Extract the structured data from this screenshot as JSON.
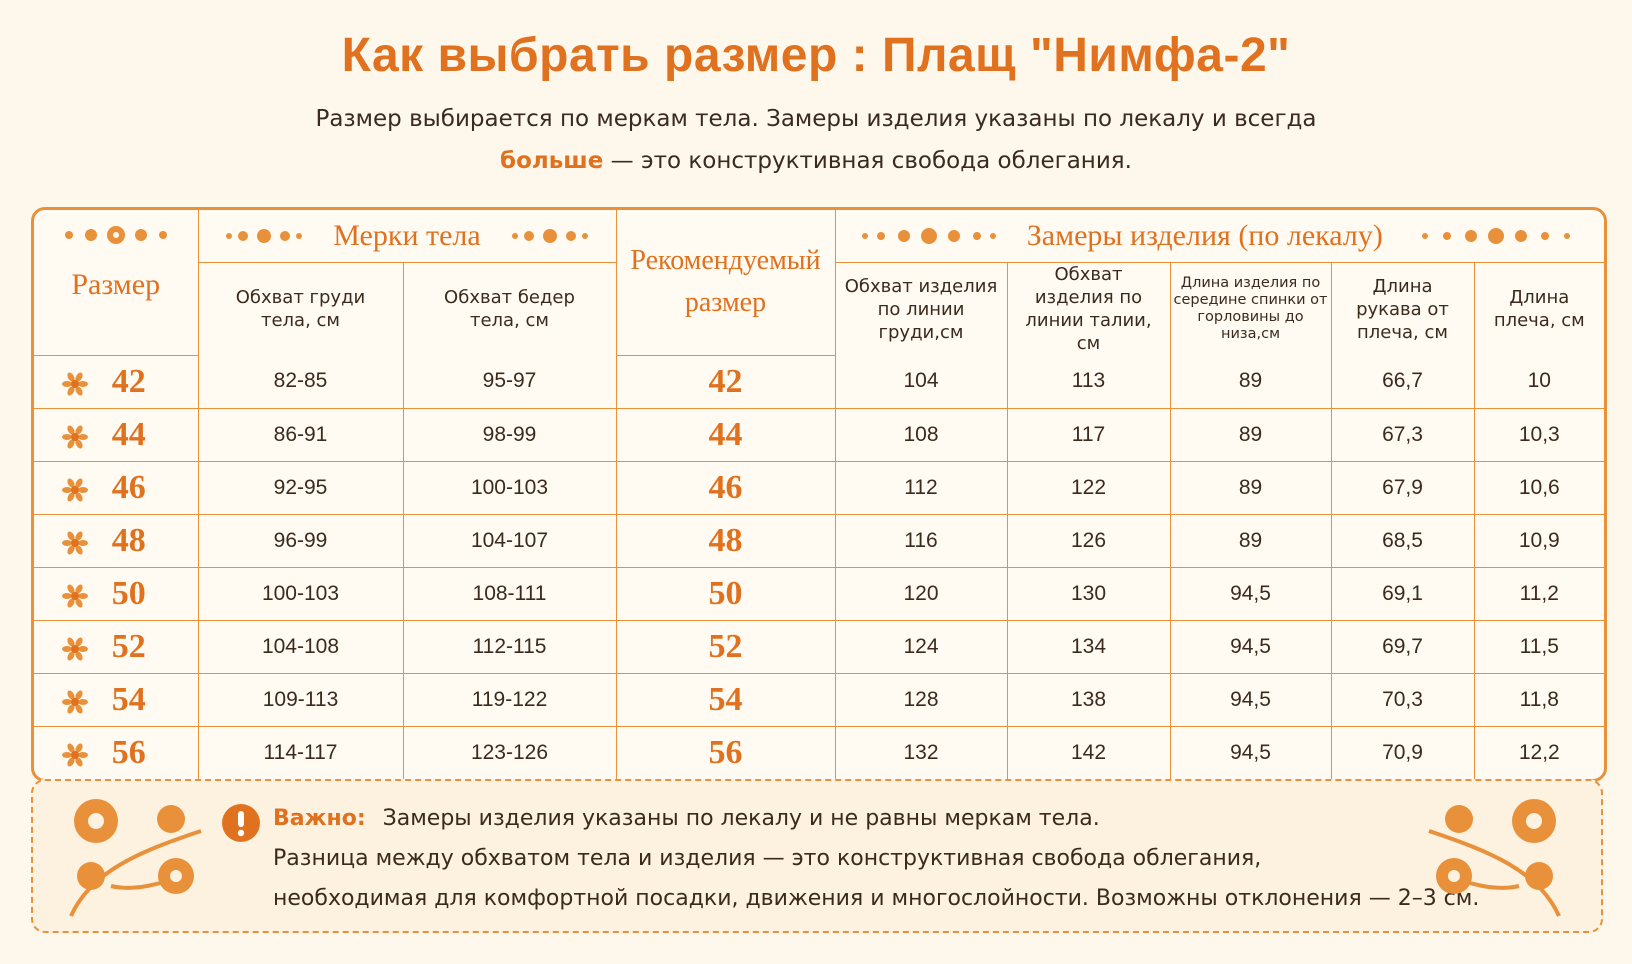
{
  "header": {
    "title": "Как выбрать размер :  Плащ \"Нимфа-2\"",
    "subtitle_line1": "Размер выбирается по меркам тела. Замеры изделия указаны по лекалу и всегда",
    "subtitle_bold": "больше",
    "subtitle_rest": "— это конструктивная свобода облегания."
  },
  "table": {
    "size_header": "Размер",
    "body_group": "Мерки тела",
    "recommended_header": "Рекомендуемый размер",
    "garment_group": "Замеры изделия (по лекалу)",
    "columns": [
      "Обхват груди тела, см",
      "Обхват бедер тела, см",
      "Обхват изделия по линии груди,см",
      "Обхват изделия по линии талии, см",
      "Длина изделия по середине спинки от горловины до низа,см",
      "Длина рукава от плеча, см",
      "Длина плеча, см"
    ],
    "rows": [
      [
        "42",
        "82-85",
        "95-97",
        "42",
        "104",
        "113",
        "89",
        "66,7",
        "10"
      ],
      [
        "44",
        "86-91",
        "98-99",
        "44",
        "108",
        "117",
        "89",
        "67,3",
        "10,3"
      ],
      [
        "46",
        "92-95",
        "100-103",
        "46",
        "112",
        "122",
        "89",
        "67,9",
        "10,6"
      ],
      [
        "48",
        "96-99",
        "104-107",
        "48",
        "116",
        "126",
        "89",
        "68,5",
        "10,9"
      ],
      [
        "50",
        "100-103",
        "108-111",
        "50",
        "120",
        "130",
        "94,5",
        "69,1",
        "11,2"
      ],
      [
        "52",
        "104-108",
        "112-115",
        "52",
        "124",
        "134",
        "94,5",
        "69,7",
        "11,5"
      ],
      [
        "54",
        "109-113",
        "119-122",
        "54",
        "128",
        "138",
        "94,5",
        "70,3",
        "11,8"
      ],
      [
        "56",
        "114-117",
        "123-126",
        "56",
        "132",
        "142",
        "94,5",
        "70,9",
        "12,2"
      ]
    ]
  },
  "note": {
    "label": "Важно:",
    "line1": "Замеры изделия указаны по лекалу и не равны меркам тела.",
    "line2": "Разница между обхватом тела и изделия — это конструктивная свобода облегания,",
    "line3": "необходимая для комфортной посадки, движения и многослойности. Возможны отклонения — 2–3 см."
  }
}
